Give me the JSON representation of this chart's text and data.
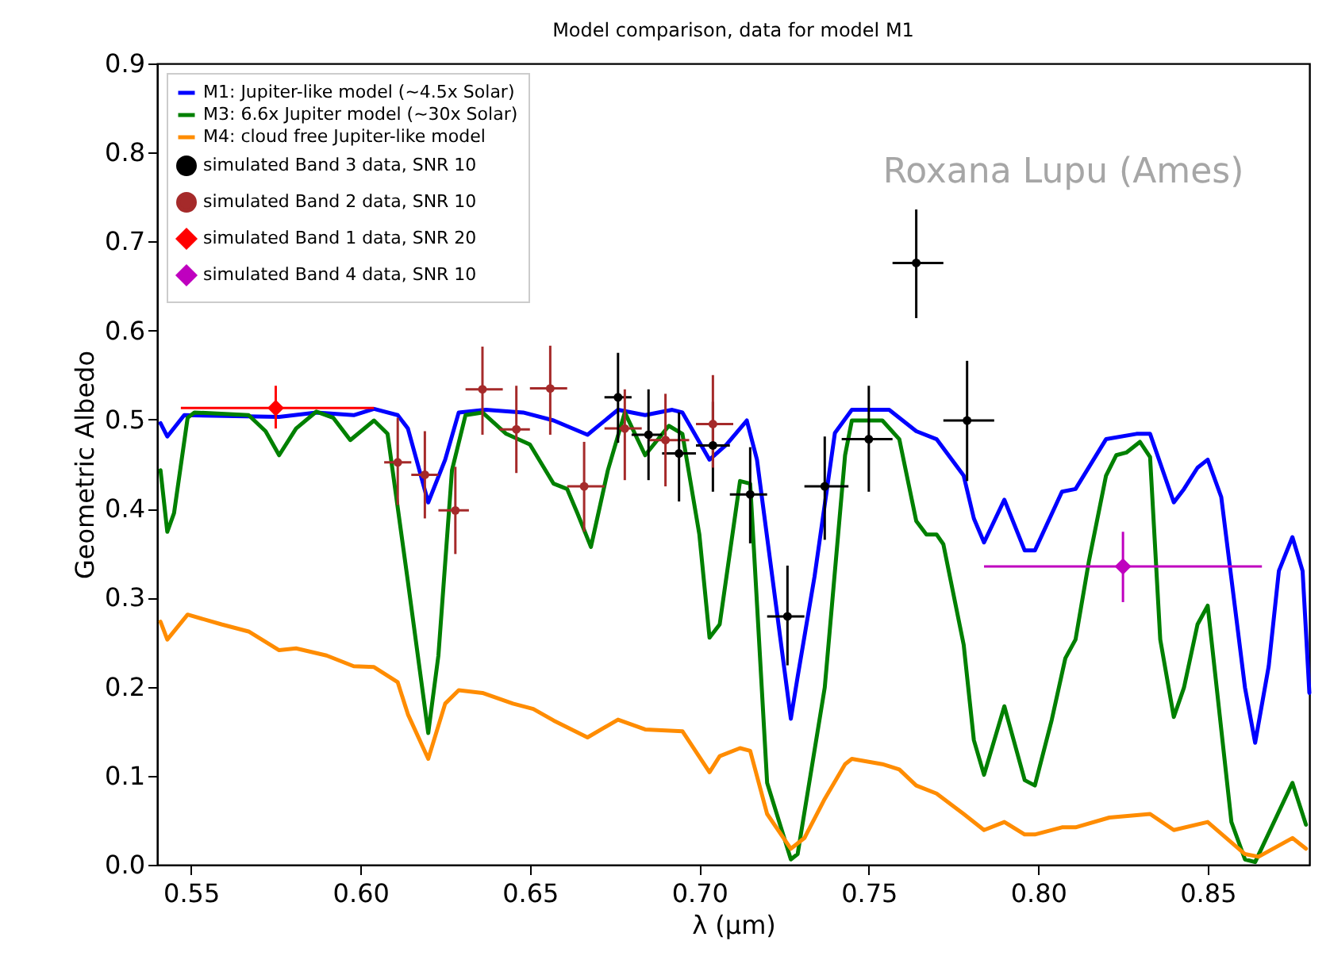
{
  "chart_data": {
    "type": "line",
    "title": "Model comparison, data for model M1",
    "xlabel": "λ (μm)",
    "ylabel": "Geometric Albedo",
    "xlim": [
      0.54,
      0.88
    ],
    "ylim": [
      0,
      0.9
    ],
    "xticks": [
      {
        "value": 0.55,
        "label": "0.55"
      },
      {
        "value": 0.6,
        "label": "0.60"
      },
      {
        "value": 0.65,
        "label": "0.65"
      },
      {
        "value": 0.7,
        "label": "0.70"
      },
      {
        "value": 0.75,
        "label": "0.75"
      },
      {
        "value": 0.8,
        "label": "0.80"
      },
      {
        "value": 0.85,
        "label": "0.85"
      }
    ],
    "yticks": [
      {
        "value": 0,
        "label": "0.0"
      },
      {
        "value": 0.1,
        "label": "0.1"
      },
      {
        "value": 0.2,
        "label": "0.2"
      },
      {
        "value": 0.3,
        "label": "0.3"
      },
      {
        "value": 0.4,
        "label": "0.4"
      },
      {
        "value": 0.5,
        "label": "0.5"
      },
      {
        "value": 0.6,
        "label": "0.6"
      },
      {
        "value": 0.7,
        "label": "0.7"
      },
      {
        "value": 0.8,
        "label": "0.8"
      },
      {
        "value": 0.9,
        "label": "0.9"
      }
    ],
    "legend": "top left",
    "grid": false,
    "annotations": [
      "Roxana Lupu (Ames)"
    ],
    "series": [
      {
        "name": "M1: Jupiter-like model (~4.5x Solar)",
        "type": "line",
        "color": "#0000ff",
        "x": [
          0.541,
          0.543,
          0.548,
          0.576,
          0.587,
          0.598,
          0.604,
          0.611,
          0.614,
          0.62,
          0.625,
          0.629,
          0.637,
          0.648,
          0.657,
          0.667,
          0.676,
          0.684,
          0.692,
          0.695,
          0.703,
          0.708,
          0.714,
          0.717,
          0.727,
          0.729,
          0.734,
          0.74,
          0.745,
          0.756,
          0.764,
          0.77,
          0.778,
          0.781,
          0.784,
          0.79,
          0.796,
          0.799,
          0.807,
          0.811,
          0.82,
          0.829,
          0.833,
          0.84,
          0.843,
          0.847,
          0.85,
          0.854,
          0.861,
          0.864,
          0.868,
          0.871,
          0.875,
          0.878,
          0.88
        ],
        "values": [
          0.496,
          0.481,
          0.505,
          0.503,
          0.508,
          0.505,
          0.512,
          0.505,
          0.49,
          0.407,
          0.455,
          0.508,
          0.511,
          0.508,
          0.499,
          0.483,
          0.511,
          0.505,
          0.511,
          0.508,
          0.455,
          0.472,
          0.499,
          0.455,
          0.164,
          0.211,
          0.324,
          0.485,
          0.511,
          0.511,
          0.487,
          0.478,
          0.437,
          0.389,
          0.362,
          0.41,
          0.353,
          0.353,
          0.419,
          0.422,
          0.478,
          0.484,
          0.484,
          0.407,
          0.422,
          0.446,
          0.455,
          0.413,
          0.199,
          0.137,
          0.223,
          0.33,
          0.368,
          0.33,
          0.193
        ]
      },
      {
        "name": "M3: 6.6x Jupiter model (~30x Solar)",
        "type": "line",
        "color": "#008000",
        "x": [
          0.541,
          0.543,
          0.545,
          0.549,
          0.551,
          0.567,
          0.572,
          0.576,
          0.581,
          0.587,
          0.592,
          0.597,
          0.604,
          0.608,
          0.614,
          0.62,
          0.623,
          0.627,
          0.631,
          0.636,
          0.643,
          0.65,
          0.657,
          0.661,
          0.664,
          0.668,
          0.673,
          0.678,
          0.684,
          0.691,
          0.695,
          0.7,
          0.703,
          0.706,
          0.712,
          0.715,
          0.72,
          0.727,
          0.729,
          0.737,
          0.743,
          0.745,
          0.754,
          0.759,
          0.764,
          0.767,
          0.77,
          0.772,
          0.778,
          0.781,
          0.784,
          0.79,
          0.796,
          0.799,
          0.804,
          0.808,
          0.811,
          0.815,
          0.82,
          0.823,
          0.826,
          0.83,
          0.833,
          0.836,
          0.84,
          0.843,
          0.847,
          0.85,
          0.857,
          0.861,
          0.864,
          0.875,
          0.879
        ],
        "values": [
          0.443,
          0.374,
          0.395,
          0.502,
          0.508,
          0.505,
          0.487,
          0.46,
          0.49,
          0.509,
          0.502,
          0.477,
          0.499,
          0.484,
          0.318,
          0.148,
          0.235,
          0.443,
          0.505,
          0.508,
          0.484,
          0.472,
          0.428,
          0.422,
          0.395,
          0.357,
          0.443,
          0.508,
          0.46,
          0.493,
          0.484,
          0.371,
          0.255,
          0.27,
          0.431,
          0.428,
          0.092,
          0.006,
          0.012,
          0.199,
          0.46,
          0.499,
          0.499,
          0.478,
          0.386,
          0.371,
          0.371,
          0.36,
          0.247,
          0.14,
          0.101,
          0.178,
          0.095,
          0.089,
          0.163,
          0.232,
          0.253,
          0.342,
          0.437,
          0.46,
          0.463,
          0.475,
          0.458,
          0.253,
          0.166,
          0.199,
          0.27,
          0.291,
          0.048,
          0.006,
          0.003,
          0.092,
          0.045
        ]
      },
      {
        "name": "M4: cloud free Jupiter-like model",
        "type": "line",
        "color": "#ff8c00",
        "x": [
          0.541,
          0.543,
          0.549,
          0.559,
          0.567,
          0.576,
          0.581,
          0.59,
          0.598,
          0.604,
          0.611,
          0.614,
          0.62,
          0.625,
          0.629,
          0.636,
          0.645,
          0.651,
          0.657,
          0.667,
          0.676,
          0.684,
          0.695,
          0.703,
          0.706,
          0.712,
          0.715,
          0.72,
          0.727,
          0.731,
          0.737,
          0.743,
          0.745,
          0.754,
          0.759,
          0.764,
          0.77,
          0.778,
          0.784,
          0.79,
          0.796,
          0.799,
          0.807,
          0.811,
          0.821,
          0.833,
          0.84,
          0.85,
          0.861,
          0.865,
          0.875,
          0.879
        ],
        "values": [
          0.273,
          0.253,
          0.281,
          0.27,
          0.262,
          0.241,
          0.243,
          0.235,
          0.223,
          0.222,
          0.205,
          0.169,
          0.119,
          0.181,
          0.196,
          0.193,
          0.181,
          0.175,
          0.162,
          0.143,
          0.163,
          0.152,
          0.15,
          0.104,
          0.122,
          0.131,
          0.128,
          0.057,
          0.018,
          0.03,
          0.074,
          0.113,
          0.119,
          0.113,
          0.107,
          0.089,
          0.08,
          0.057,
          0.039,
          0.048,
          0.034,
          0.034,
          0.042,
          0.042,
          0.053,
          0.057,
          0.039,
          0.048,
          0.012,
          0.009,
          0.03,
          0.018
        ]
      },
      {
        "name": "simulated Band 3 data, SNR 10",
        "type": "scatter",
        "marker": "circle",
        "color": "#000000",
        "x": [
          0.676,
          0.685,
          0.694,
          0.704,
          0.715,
          0.726,
          0.737,
          0.75,
          0.764,
          0.779
        ],
        "values": [
          0.525,
          0.483,
          0.462,
          0.471,
          0.416,
          0.279,
          0.425,
          0.478,
          0.676,
          0.499
        ],
        "errors": [
          [
            0.474,
            0.575
          ],
          [
            0.432,
            0.534
          ],
          [
            0.408,
            0.508
          ],
          [
            0.419,
            0.52
          ],
          [
            0.361,
            0.469
          ],
          [
            0.224,
            0.336
          ],
          [
            0.365,
            0.481
          ],
          [
            0.419,
            0.538
          ],
          [
            0.614,
            0.736
          ],
          [
            0.431,
            0.566
          ]
        ],
        "xerrors": [
          [
            0.672,
            0.68
          ],
          [
            0.68,
            0.689
          ],
          [
            0.689,
            0.699
          ],
          [
            0.699,
            0.709
          ],
          [
            0.709,
            0.72
          ],
          [
            0.72,
            0.731
          ],
          [
            0.731,
            0.744
          ],
          [
            0.742,
            0.757
          ],
          [
            0.757,
            0.772
          ],
          [
            0.772,
            0.787
          ]
        ]
      },
      {
        "name": "simulated Band 2 data, SNR 10",
        "type": "scatter",
        "marker": "circle",
        "color": "#a52a2a",
        "x": [
          0.611,
          0.619,
          0.628,
          0.636,
          0.646,
          0.656,
          0.666,
          0.678,
          0.69,
          0.704
        ],
        "values": [
          0.452,
          0.438,
          0.398,
          0.534,
          0.489,
          0.535,
          0.425,
          0.49,
          0.477,
          0.495
        ],
        "errors": [
          [
            0.404,
            0.502
          ],
          [
            0.389,
            0.487
          ],
          [
            0.349,
            0.447
          ],
          [
            0.483,
            0.582
          ],
          [
            0.44,
            0.538
          ],
          [
            0.483,
            0.583
          ],
          [
            0.374,
            0.475
          ],
          [
            0.432,
            0.534
          ],
          [
            0.425,
            0.529
          ],
          [
            0.446,
            0.55
          ]
        ],
        "xerrors": [
          [
            0.607,
            0.615
          ],
          [
            0.615,
            0.623
          ],
          [
            0.623,
            0.632
          ],
          [
            0.631,
            0.642
          ],
          [
            0.641,
            0.65
          ],
          [
            0.65,
            0.661
          ],
          [
            0.661,
            0.672
          ],
          [
            0.672,
            0.683
          ],
          [
            0.685,
            0.697
          ],
          [
            0.699,
            0.71
          ]
        ]
      },
      {
        "name": "simulated Band 1 data, SNR 20",
        "type": "scatter",
        "marker": "diamond",
        "color": "#ff0000",
        "x": [
          0.575
        ],
        "values": [
          0.513
        ],
        "errors": [
          [
            0.49,
            0.538
          ]
        ],
        "xerrors": [
          [
            0.547,
            0.604
          ]
        ]
      },
      {
        "name": "simulated Band 4 data, SNR 10",
        "type": "scatter",
        "marker": "diamond",
        "color": "#bf00bf",
        "x": [
          0.825
        ],
        "values": [
          0.335
        ],
        "errors": [
          [
            0.295,
            0.374
          ]
        ],
        "xerrors": [
          [
            0.784,
            0.866
          ]
        ]
      }
    ]
  }
}
